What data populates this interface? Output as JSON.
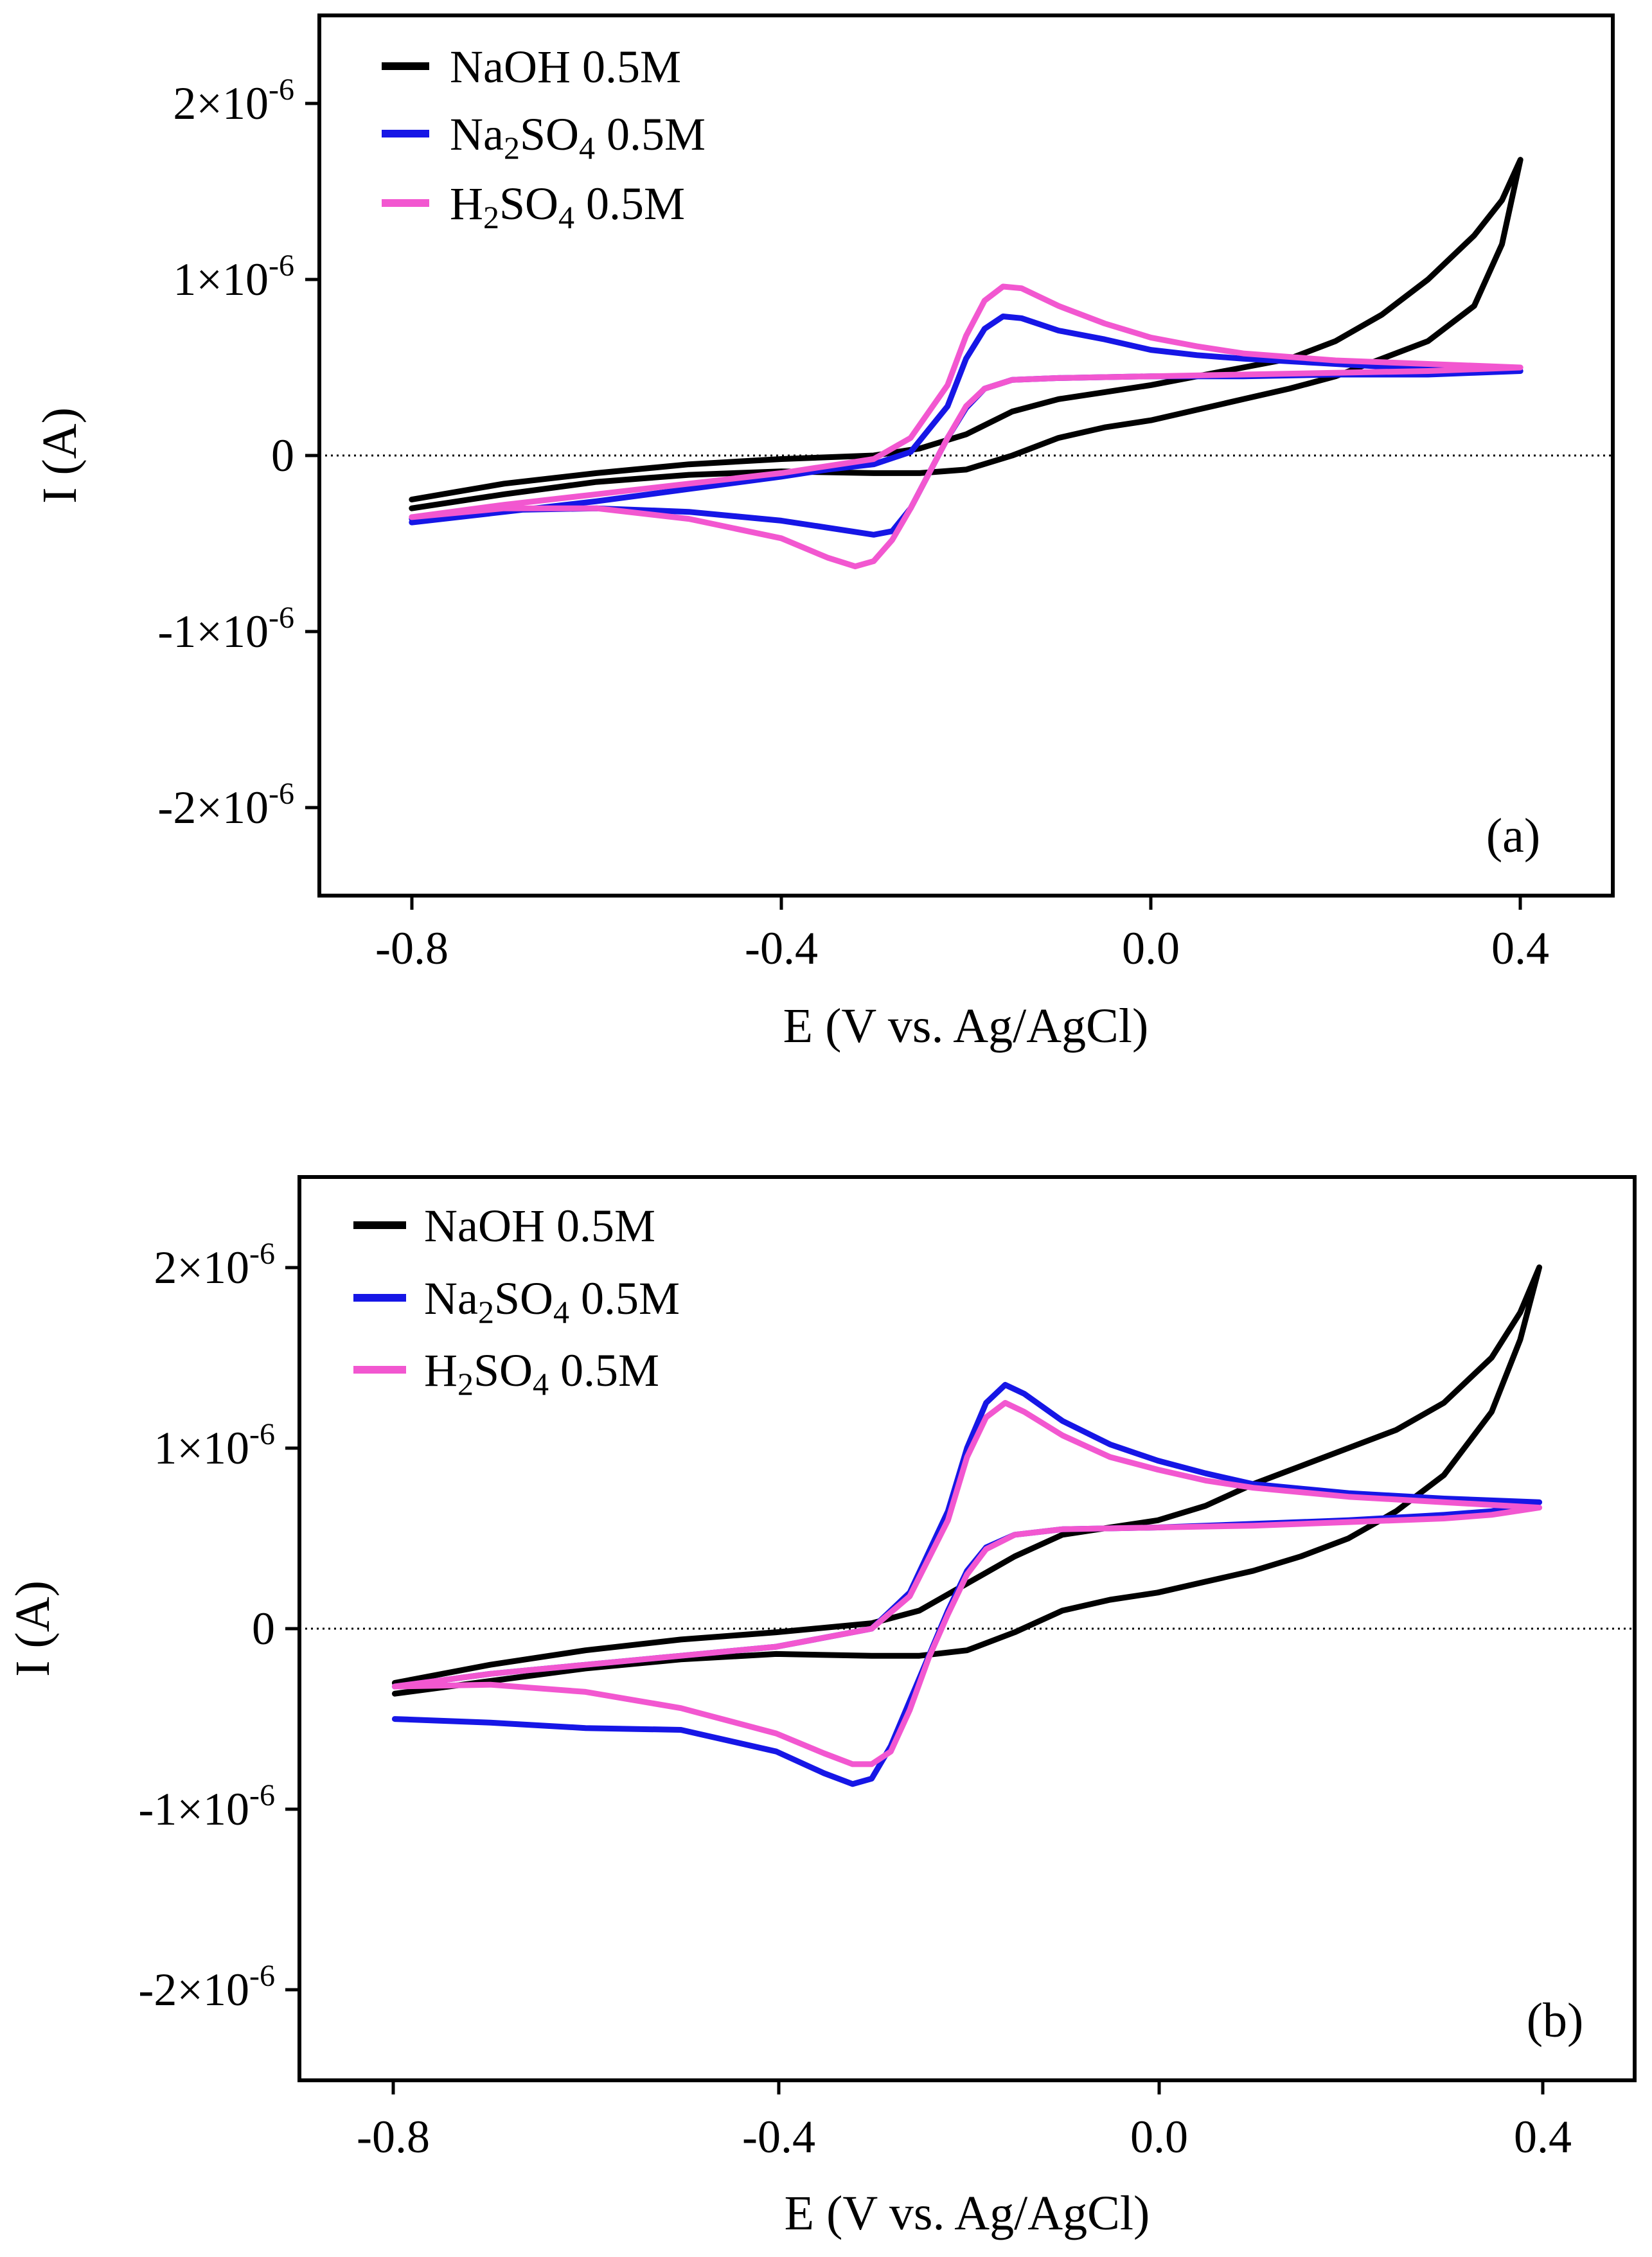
{
  "chart_data": [
    {
      "type": "line",
      "panel_label": "(a)",
      "xlabel": "E (V vs. Ag/AgCl)",
      "ylabel": "I (A)",
      "xlim": [
        -0.9,
        0.5
      ],
      "ylim": [
        -2.5e-06,
        2.5e-06
      ],
      "xticks": [
        -0.8,
        -0.4,
        0.0,
        0.4
      ],
      "xtick_labels": [
        "-0.8",
        "-0.4",
        "0.0",
        "0.4"
      ],
      "yticks": [
        2e-06,
        1e-06,
        0,
        -1e-06,
        -2e-06
      ],
      "ytick_labels": [
        {
          "mant": "2×10",
          "exp": "-6"
        },
        {
          "mant": "1×10",
          "exp": "-6"
        },
        {
          "mant": "0",
          "exp": ""
        },
        {
          "mant": "-1×10",
          "exp": "-6"
        },
        {
          "mant": "-2×10",
          "exp": "-6"
        }
      ],
      "zero_line": true,
      "legend_position": "top-left",
      "series": [
        {
          "name": "NaOH 0.5M",
          "legend": {
            "base": "NaOH",
            "conc": " 0.5M"
          },
          "color": "#000000",
          "x": [
            -0.8,
            -0.7,
            -0.6,
            -0.5,
            -0.4,
            -0.3,
            -0.25,
            -0.2,
            -0.15,
            -0.1,
            -0.05,
            0.0,
            0.05,
            0.1,
            0.15,
            0.2,
            0.25,
            0.3,
            0.35,
            0.38,
            0.4,
            0.38,
            0.35,
            0.3,
            0.25,
            0.2,
            0.15,
            0.1,
            0.05,
            0.0,
            -0.05,
            -0.1,
            -0.15,
            -0.2,
            -0.25,
            -0.3,
            -0.4,
            -0.5,
            -0.6,
            -0.7,
            -0.8
          ],
          "y": [
            -2.5e-07,
            -1.6e-07,
            -1e-07,
            -5e-08,
            -2e-08,
            0,
            4e-08,
            1.2e-07,
            2.5e-07,
            3.2e-07,
            3.6e-07,
            4e-07,
            4.5e-07,
            5e-07,
            5.5e-07,
            6.5e-07,
            8e-07,
            1e-06,
            1.25e-06,
            1.45e-06,
            1.68e-06,
            1.2e-06,
            8.5e-07,
            6.5e-07,
            5.5e-07,
            4.5e-07,
            3.8e-07,
            3.2e-07,
            2.6e-07,
            2e-07,
            1.6e-07,
            1e-07,
            0,
            -8e-08,
            -1e-07,
            -1e-07,
            -9e-08,
            -1.1e-07,
            -1.5e-07,
            -2.2e-07,
            -3e-07
          ]
        },
        {
          "name": "Na2SO4 0.5M",
          "legend": {
            "base": "Na",
            "sub1": "2",
            "mid": "SO",
            "sub2": "4",
            "conc": " 0.5M"
          },
          "color": "#1616e6",
          "x": [
            -0.8,
            -0.7,
            -0.6,
            -0.5,
            -0.4,
            -0.35,
            -0.3,
            -0.26,
            -0.22,
            -0.2,
            -0.18,
            -0.16,
            -0.14,
            -0.1,
            -0.05,
            0.0,
            0.05,
            0.1,
            0.2,
            0.3,
            0.4,
            0.35,
            0.3,
            0.2,
            0.1,
            0.0,
            -0.1,
            -0.15,
            -0.18,
            -0.2,
            -0.22,
            -0.24,
            -0.26,
            -0.28,
            -0.3,
            -0.35,
            -0.4,
            -0.5,
            -0.6,
            -0.7,
            -0.8
          ],
          "y": [
            -3.8e-07,
            -3.2e-07,
            -2.6e-07,
            -1.9e-07,
            -1.2e-07,
            -8e-08,
            -5e-08,
            2e-08,
            2.8e-07,
            5.5e-07,
            7.2e-07,
            7.9e-07,
            7.8e-07,
            7.1e-07,
            6.6e-07,
            6e-07,
            5.7e-07,
            5.5e-07,
            5.2e-07,
            4.9e-07,
            4.8e-07,
            4.7e-07,
            4.6e-07,
            4.6e-07,
            4.5e-07,
            4.5e-07,
            4.4e-07,
            4.3e-07,
            3.8e-07,
            2.7e-07,
            1e-07,
            -1e-07,
            -3e-07,
            -4.3e-07,
            -4.5e-07,
            -4.1e-07,
            -3.7e-07,
            -3.2e-07,
            -3e-07,
            -3.1e-07,
            -3.6e-07
          ]
        },
        {
          "name": "H2SO4 0.5M",
          "legend": {
            "base": "H",
            "sub1": "2",
            "mid": "SO",
            "sub2": "4",
            "conc": " 0.5M"
          },
          "color": "#f257d0",
          "x": [
            -0.8,
            -0.7,
            -0.6,
            -0.5,
            -0.4,
            -0.35,
            -0.3,
            -0.26,
            -0.22,
            -0.2,
            -0.18,
            -0.16,
            -0.14,
            -0.1,
            -0.05,
            0.0,
            0.05,
            0.1,
            0.2,
            0.3,
            0.4,
            0.35,
            0.3,
            0.2,
            0.1,
            0.0,
            -0.1,
            -0.15,
            -0.18,
            -0.2,
            -0.22,
            -0.24,
            -0.26,
            -0.28,
            -0.3,
            -0.32,
            -0.35,
            -0.4,
            -0.5,
            -0.6,
            -0.7,
            -0.8
          ],
          "y": [
            -3.5e-07,
            -2.8e-07,
            -2.2e-07,
            -1.6e-07,
            -1e-07,
            -6e-08,
            -2e-08,
            1e-07,
            4e-07,
            6.8e-07,
            8.8e-07,
            9.6e-07,
            9.5e-07,
            8.5e-07,
            7.5e-07,
            6.7e-07,
            6.2e-07,
            5.8e-07,
            5.4e-07,
            5.2e-07,
            5e-07,
            4.9e-07,
            4.8e-07,
            4.7e-07,
            4.6e-07,
            4.5e-07,
            4.4e-07,
            4.3e-07,
            3.8e-07,
            2.8e-07,
            1e-07,
            -1e-07,
            -3e-07,
            -4.8e-07,
            -6e-07,
            -6.3e-07,
            -5.8e-07,
            -4.7e-07,
            -3.6e-07,
            -3e-07,
            -3e-07,
            -3.5e-07
          ]
        }
      ]
    },
    {
      "type": "line",
      "panel_label": "(b)",
      "xlabel": "E (V vs. Ag/AgCl)",
      "ylabel": "I (A)",
      "xlim": [
        -0.9,
        0.5
      ],
      "ylim": [
        -2.5e-06,
        2.5e-06
      ],
      "xticks": [
        -0.8,
        -0.4,
        0.0,
        0.4
      ],
      "xtick_labels": [
        "-0.8",
        "-0.4",
        "0.0",
        "0.4"
      ],
      "yticks": [
        2e-06,
        1e-06,
        0,
        -1e-06,
        -2e-06
      ],
      "ytick_labels": [
        {
          "mant": "2×10",
          "exp": "-6"
        },
        {
          "mant": "1×10",
          "exp": "-6"
        },
        {
          "mant": "0",
          "exp": ""
        },
        {
          "mant": "-1×10",
          "exp": "-6"
        },
        {
          "mant": "-2×10",
          "exp": "-6"
        }
      ],
      "zero_line": true,
      "legend_position": "top-left",
      "series": [
        {
          "name": "NaOH 0.5M",
          "legend": {
            "base": "NaOH",
            "conc": " 0.5M"
          },
          "color": "#000000",
          "x": [
            -0.8,
            -0.7,
            -0.6,
            -0.5,
            -0.4,
            -0.3,
            -0.25,
            -0.2,
            -0.15,
            -0.1,
            -0.05,
            0.0,
            0.05,
            0.1,
            0.15,
            0.2,
            0.25,
            0.3,
            0.35,
            0.38,
            0.4,
            0.38,
            0.35,
            0.3,
            0.25,
            0.2,
            0.15,
            0.1,
            0.05,
            0.0,
            -0.05,
            -0.1,
            -0.15,
            -0.2,
            -0.25,
            -0.3,
            -0.4,
            -0.5,
            -0.6,
            -0.7,
            -0.8
          ],
          "y": [
            -3e-07,
            -2e-07,
            -1.2e-07,
            -6e-08,
            -2e-08,
            3e-08,
            1e-07,
            2.5e-07,
            4e-07,
            5.2e-07,
            5.6e-07,
            6e-07,
            6.8e-07,
            8e-07,
            9e-07,
            1e-06,
            1.1e-06,
            1.25e-06,
            1.5e-06,
            1.75e-06,
            2e-06,
            1.6e-06,
            1.2e-06,
            8.5e-07,
            6.5e-07,
            5e-07,
            4e-07,
            3.2e-07,
            2.6e-07,
            2e-07,
            1.6e-07,
            1e-07,
            -2e-08,
            -1.2e-07,
            -1.5e-07,
            -1.5e-07,
            -1.4e-07,
            -1.7e-07,
            -2.2e-07,
            -2.9e-07,
            -3.6e-07
          ]
        },
        {
          "name": "Na2SO4 0.5M",
          "legend": {
            "base": "Na",
            "sub1": "2",
            "mid": "SO",
            "sub2": "4",
            "conc": " 0.5M"
          },
          "color": "#1616e6",
          "x": [
            -0.8,
            -0.7,
            -0.6,
            -0.5,
            -0.4,
            -0.35,
            -0.3,
            -0.26,
            -0.22,
            -0.2,
            -0.18,
            -0.16,
            -0.14,
            -0.1,
            -0.05,
            0.0,
            0.05,
            0.1,
            0.2,
            0.3,
            0.4,
            0.35,
            0.3,
            0.2,
            0.1,
            0.0,
            -0.1,
            -0.15,
            -0.18,
            -0.2,
            -0.22,
            -0.24,
            -0.26,
            -0.28,
            -0.3,
            -0.32,
            -0.35,
            -0.4,
            -0.5,
            -0.6,
            -0.7,
            -0.8
          ],
          "y": [
            -3.2e-07,
            -2.5e-07,
            -2e-07,
            -1.5e-07,
            -1e-07,
            -5e-08,
            0,
            2e-07,
            6.5e-07,
            1e-06,
            1.25e-06,
            1.35e-06,
            1.3e-06,
            1.15e-06,
            1.02e-06,
            9.3e-07,
            8.6e-07,
            8e-07,
            7.5e-07,
            7.2e-07,
            7e-07,
            6.5e-07,
            6.3e-07,
            6e-07,
            5.8e-07,
            5.6e-07,
            5.5e-07,
            5.2e-07,
            4.5e-07,
            3.2e-07,
            1e-07,
            -1.5e-07,
            -4e-07,
            -6.5e-07,
            -8.3e-07,
            -8.6e-07,
            -8e-07,
            -6.8e-07,
            -5.6e-07,
            -5.5e-07,
            -5.2e-07,
            -5e-07
          ]
        },
        {
          "name": "H2SO4 0.5M",
          "legend": {
            "base": "H",
            "sub1": "2",
            "mid": "SO",
            "sub2": "4",
            "conc": " 0.5M"
          },
          "color": "#f257d0",
          "x": [
            -0.8,
            -0.7,
            -0.6,
            -0.5,
            -0.4,
            -0.35,
            -0.3,
            -0.26,
            -0.22,
            -0.2,
            -0.18,
            -0.16,
            -0.14,
            -0.1,
            -0.05,
            0.0,
            0.05,
            0.1,
            0.2,
            0.3,
            0.4,
            0.35,
            0.3,
            0.2,
            0.1,
            0.0,
            -0.1,
            -0.15,
            -0.18,
            -0.2,
            -0.22,
            -0.24,
            -0.26,
            -0.28,
            -0.3,
            -0.32,
            -0.35,
            -0.4,
            -0.5,
            -0.6,
            -0.7,
            -0.8
          ],
          "y": [
            -3.2e-07,
            -2.5e-07,
            -2e-07,
            -1.5e-07,
            -1e-07,
            -5e-08,
            0,
            1.8e-07,
            6e-07,
            9.5e-07,
            1.17e-06,
            1.25e-06,
            1.2e-06,
            1.07e-06,
            9.5e-07,
            8.8e-07,
            8.2e-07,
            7.8e-07,
            7.3e-07,
            7e-07,
            6.7e-07,
            6.3e-07,
            6.1e-07,
            5.9e-07,
            5.7e-07,
            5.6e-07,
            5.5e-07,
            5.2e-07,
            4.4e-07,
            3e-07,
            8e-08,
            -1.6e-07,
            -4.5e-07,
            -6.8e-07,
            -7.5e-07,
            -7.5e-07,
            -6.9e-07,
            -5.8e-07,
            -4.4e-07,
            -3.5e-07,
            -3.1e-07,
            -3.2e-07
          ]
        }
      ]
    }
  ]
}
